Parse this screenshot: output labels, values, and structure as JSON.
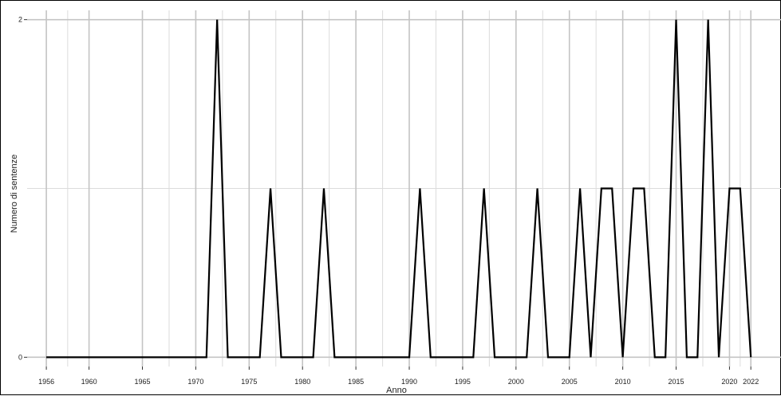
{
  "chart_data": {
    "type": "line",
    "title": "",
    "xlabel": "Anno",
    "ylabel": "Numero di sentenze",
    "xlim": [
      1954.2,
      2024.9
    ],
    "ylim": [
      -0.055,
      2.055
    ],
    "grid": true,
    "x_ticks": [
      1956,
      1960,
      1965,
      1970,
      1975,
      1980,
      1985,
      1990,
      1995,
      2000,
      2005,
      2010,
      2015,
      2020,
      2022
    ],
    "x_tick_labels": [
      "1956",
      "1960",
      "1965",
      "1970",
      "1975",
      "1980",
      "1985",
      "1990",
      "1995",
      "2000",
      "2005",
      "2010",
      "2015",
      "2020",
      "2022"
    ],
    "y_ticks": [
      0,
      2
    ],
    "y_tick_labels": [
      "0",
      "2"
    ],
    "x_minor_grid": [
      1958,
      1967.5,
      1972.5,
      1977.5,
      1982.5,
      1987.5,
      1992.5,
      1997.5,
      2002.5,
      2007.5,
      2012.5,
      2017.5,
      2021
    ],
    "y_minor_grid": [
      1
    ],
    "series": [
      {
        "name": "",
        "color": "#000000",
        "x": [
          1956,
          1957,
          1958,
          1959,
          1960,
          1961,
          1962,
          1963,
          1964,
          1965,
          1966,
          1967,
          1968,
          1969,
          1970,
          1971,
          1972,
          1973,
          1974,
          1975,
          1976,
          1977,
          1978,
          1979,
          1980,
          1981,
          1982,
          1983,
          1984,
          1985,
          1986,
          1987,
          1988,
          1989,
          1990,
          1991,
          1992,
          1993,
          1994,
          1995,
          1996,
          1997,
          1998,
          1999,
          2000,
          2001,
          2002,
          2003,
          2004,
          2005,
          2006,
          2007,
          2008,
          2009,
          2010,
          2011,
          2012,
          2013,
          2014,
          2015,
          2016,
          2017,
          2018,
          2019,
          2020,
          2021,
          2022
        ],
        "values": [
          0,
          0,
          0,
          0,
          0,
          0,
          0,
          0,
          0,
          0,
          0,
          0,
          0,
          0,
          0,
          0,
          2,
          0,
          0,
          0,
          0,
          1,
          0,
          0,
          0,
          0,
          1,
          0,
          0,
          0,
          0,
          0,
          0,
          0,
          0,
          1,
          0,
          0,
          0,
          0,
          0,
          1,
          0,
          0,
          0,
          0,
          1,
          0,
          0,
          0,
          1,
          0,
          1,
          1,
          0,
          1,
          1,
          0,
          0,
          2,
          0,
          0,
          2,
          0,
          1,
          1,
          0
        ]
      }
    ]
  }
}
